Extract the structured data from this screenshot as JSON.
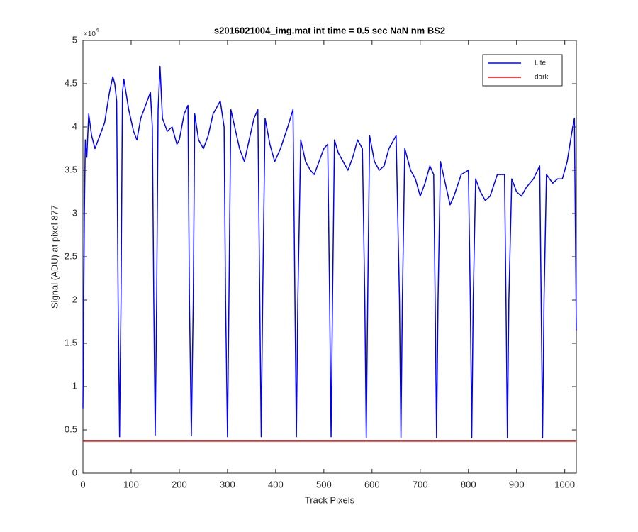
{
  "chart_data": {
    "type": "line",
    "title": "s2016021004_img.mat int time = 0.5 sec  NaN nm BS2",
    "xlabel": "Track Pixels",
    "ylabel": "Signal (ADU) at pixel 877",
    "y_multiplier": "×10",
    "y_multiplier_exponent": "4",
    "xlim": [
      0,
      1024
    ],
    "xticks": [
      0,
      100,
      200,
      300,
      400,
      500,
      600,
      700,
      800,
      900,
      1000
    ],
    "ylim": [
      0,
      5
    ],
    "yticks": [
      0,
      0.5,
      1,
      1.5,
      2,
      2.5,
      3,
      3.5,
      4,
      4.5,
      5
    ],
    "grid": false,
    "legend": "northeast",
    "series": [
      {
        "name": "Lite",
        "color": "#0000ff",
        "x": [
          0,
          3,
          5,
          8,
          12,
          18,
          25,
          35,
          45,
          55,
          62,
          66,
          70,
          73,
          76,
          79,
          82,
          85,
          95,
          105,
          112,
          120,
          130,
          140,
          144,
          147,
          150,
          153,
          156,
          160,
          165,
          175,
          185,
          195,
          200,
          210,
          218,
          221,
          225,
          229,
          232,
          240,
          250,
          260,
          270,
          285,
          293,
          296,
          300,
          303,
          307,
          315,
          325,
          335,
          345,
          355,
          363,
          367,
          370,
          373,
          378,
          388,
          398,
          410,
          425,
          436,
          440,
          443,
          446,
          452,
          462,
          472,
          480,
          490,
          500,
          508,
          512,
          515,
          518,
          522,
          530,
          540,
          550,
          560,
          570,
          580,
          585,
          588,
          591,
          595,
          605,
          615,
          625,
          635,
          650,
          657,
          660,
          663,
          668,
          680,
          690,
          700,
          710,
          720,
          728,
          731,
          734,
          737,
          742,
          752,
          762,
          770,
          785,
          800,
          804,
          807,
          810,
          815,
          825,
          835,
          845,
          860,
          875,
          878,
          881,
          884,
          890,
          900,
          910,
          920,
          935,
          948,
          951,
          954,
          957,
          962,
          975,
          985,
          995,
          1005,
          1015,
          1020,
          1024
        ],
        "values": [
          0.75,
          3.0,
          3.85,
          3.65,
          4.15,
          3.9,
          3.75,
          3.9,
          4.05,
          4.4,
          4.58,
          4.5,
          4.3,
          2.0,
          0.42,
          2.0,
          4.4,
          4.55,
          4.2,
          3.95,
          3.85,
          4.1,
          4.25,
          4.4,
          4.0,
          2.0,
          0.44,
          2.0,
          4.2,
          4.7,
          4.1,
          3.95,
          4.0,
          3.8,
          3.85,
          4.15,
          4.25,
          2.0,
          0.43,
          2.0,
          4.15,
          3.85,
          3.75,
          3.9,
          4.15,
          4.3,
          4.0,
          2.0,
          0.42,
          2.0,
          4.2,
          4.0,
          3.75,
          3.6,
          3.85,
          4.1,
          4.2,
          2.0,
          0.42,
          2.0,
          4.1,
          3.8,
          3.6,
          3.75,
          4.0,
          4.2,
          2.0,
          0.42,
          2.0,
          3.85,
          3.6,
          3.5,
          3.45,
          3.6,
          3.75,
          3.8,
          2.0,
          0.42,
          2.0,
          3.85,
          3.7,
          3.6,
          3.5,
          3.65,
          3.85,
          3.75,
          2.0,
          0.41,
          2.0,
          3.9,
          3.6,
          3.5,
          3.55,
          3.75,
          3.9,
          2.0,
          0.41,
          2.0,
          3.75,
          3.5,
          3.4,
          3.2,
          3.35,
          3.55,
          3.45,
          2.0,
          0.41,
          2.0,
          3.6,
          3.35,
          3.1,
          3.2,
          3.45,
          3.5,
          2.0,
          0.41,
          2.0,
          3.4,
          3.25,
          3.15,
          3.2,
          3.45,
          3.45,
          2.0,
          0.41,
          2.0,
          3.4,
          3.25,
          3.2,
          3.3,
          3.4,
          3.55,
          2.0,
          0.41,
          2.0,
          3.45,
          3.35,
          3.4,
          3.4,
          3.6,
          3.95,
          4.1,
          1.65
        ]
      },
      {
        "name": "dark",
        "color": "#ff0000",
        "x": [
          0,
          1024
        ],
        "values": [
          0.37,
          0.37
        ]
      }
    ]
  }
}
